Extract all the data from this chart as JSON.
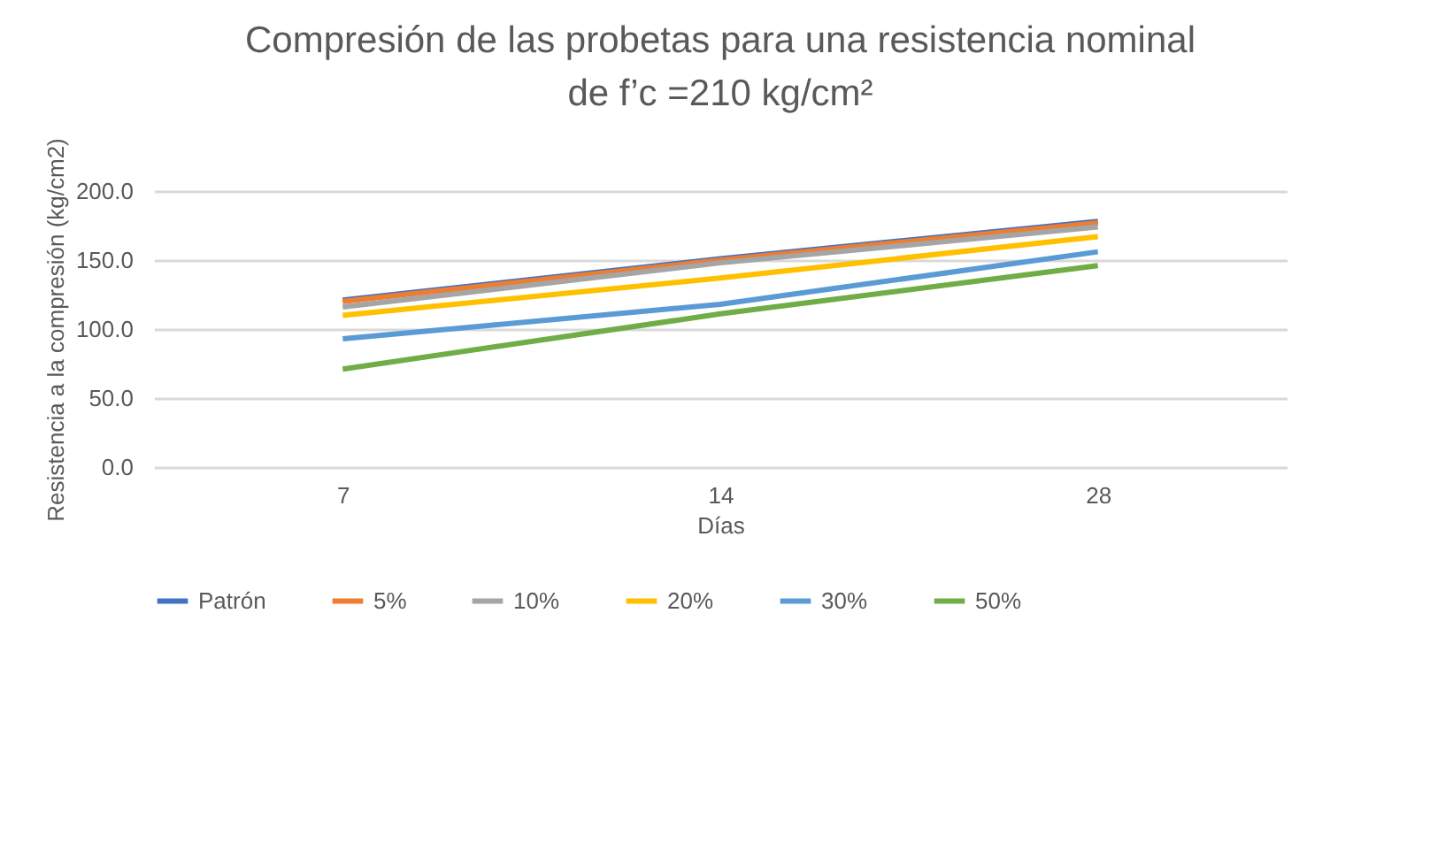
{
  "chart_data": {
    "type": "line",
    "title": "Compresión de las probetas para una resistencia nominal de f’c =210 kg/cm²",
    "xlabel": "Días",
    "ylabel": "Resistencia a la compresión (kg/cm2)",
    "categories": [
      "7",
      "14",
      "28"
    ],
    "series": [
      {
        "name": "Patrón",
        "color": "#4472c4",
        "values": [
          121,
          151,
          178
        ]
      },
      {
        "name": "5%",
        "color": "#ed7d31",
        "values": [
          120,
          150,
          177
        ]
      },
      {
        "name": "10%",
        "color": "#a5a5a5",
        "values": [
          116,
          148,
          174
        ]
      },
      {
        "name": "20%",
        "color": "#ffc000",
        "values": [
          110,
          137,
          167
        ]
      },
      {
        "name": "30%",
        "color": "#5b9bd5",
        "values": [
          93,
          118,
          156
        ]
      },
      {
        "name": "50%",
        "color": "#70ad47",
        "values": [
          71,
          111,
          146
        ]
      }
    ],
    "ylim": [
      0,
      200
    ],
    "yticks": [
      {
        "value": 0,
        "label": "0.0"
      },
      {
        "value": 50,
        "label": "50.0"
      },
      {
        "value": 100,
        "label": "100.0"
      },
      {
        "value": 150,
        "label": "150.0"
      },
      {
        "value": 200,
        "label": "200.0"
      }
    ],
    "grid": "y",
    "legend": "bottom",
    "marker": "none",
    "line_style": "solid"
  }
}
